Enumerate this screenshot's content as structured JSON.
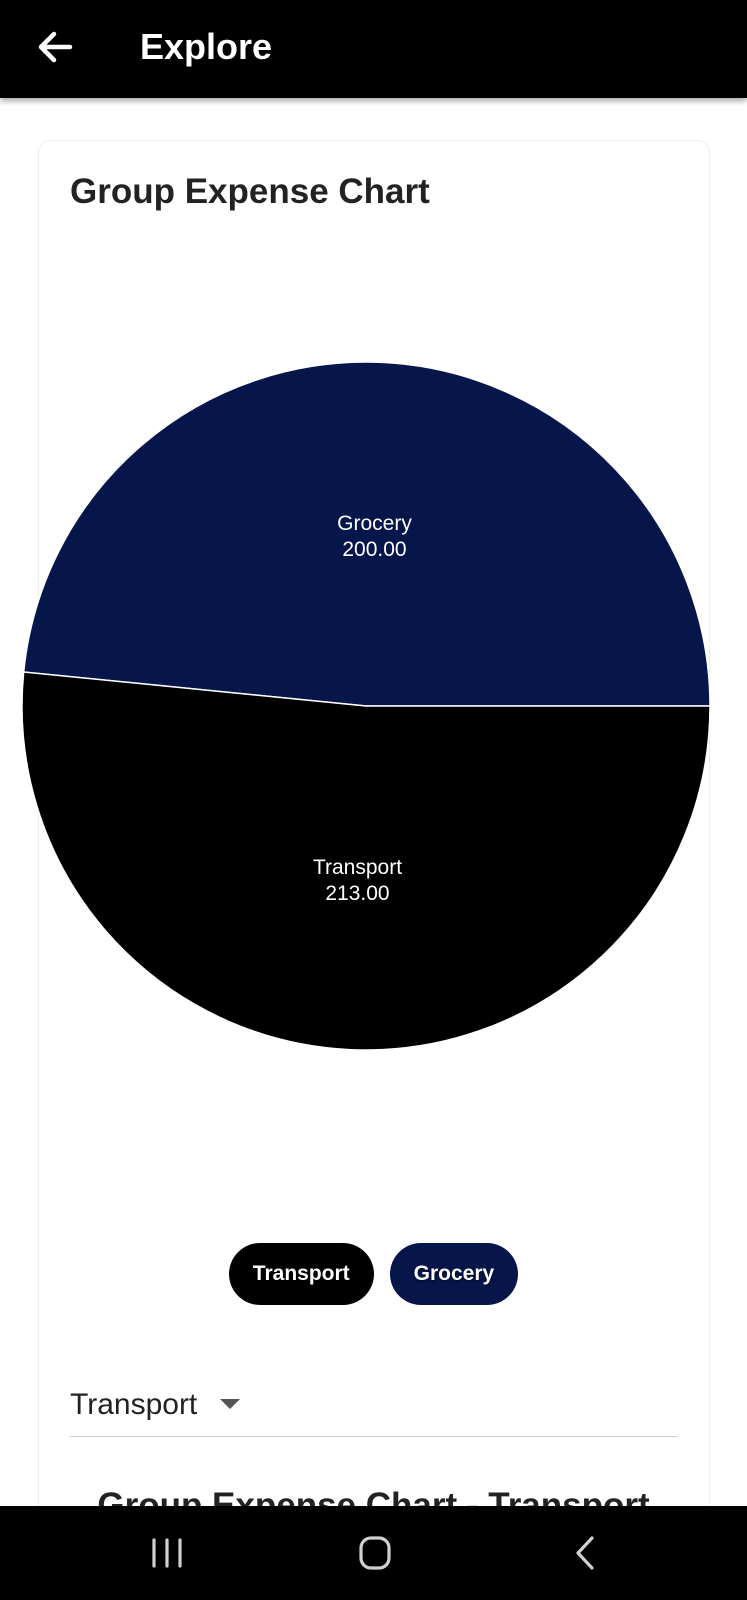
{
  "app_bar": {
    "title": "Explore",
    "back_icon": "arrow-left-icon"
  },
  "card": {
    "title": "Group Expense Chart"
  },
  "chart_data": {
    "type": "pie",
    "title": "Group Expense Chart",
    "slices": [
      {
        "label": "Grocery",
        "value": 200.0,
        "value_label": "200.00",
        "color": "#06154a"
      },
      {
        "label": "Transport",
        "value": 213.0,
        "value_label": "213.00",
        "color": "#000000"
      }
    ],
    "legend_placement": "bottom"
  },
  "legend": {
    "items": [
      {
        "label": "Transport",
        "color": "#000000"
      },
      {
        "label": "Grocery",
        "color": "#06154a"
      }
    ]
  },
  "dropdown": {
    "selected": "Transport",
    "icon": "caret-down-icon"
  },
  "section": {
    "title": "Group Expense Chart - Transport"
  },
  "nav_bar": {
    "recents_icon": "recents-icon",
    "home_icon": "home-icon",
    "back_icon": "chevron-left-icon"
  },
  "colors": {
    "app_bar": "#000000",
    "grocery": "#06154a",
    "transport": "#000000"
  }
}
